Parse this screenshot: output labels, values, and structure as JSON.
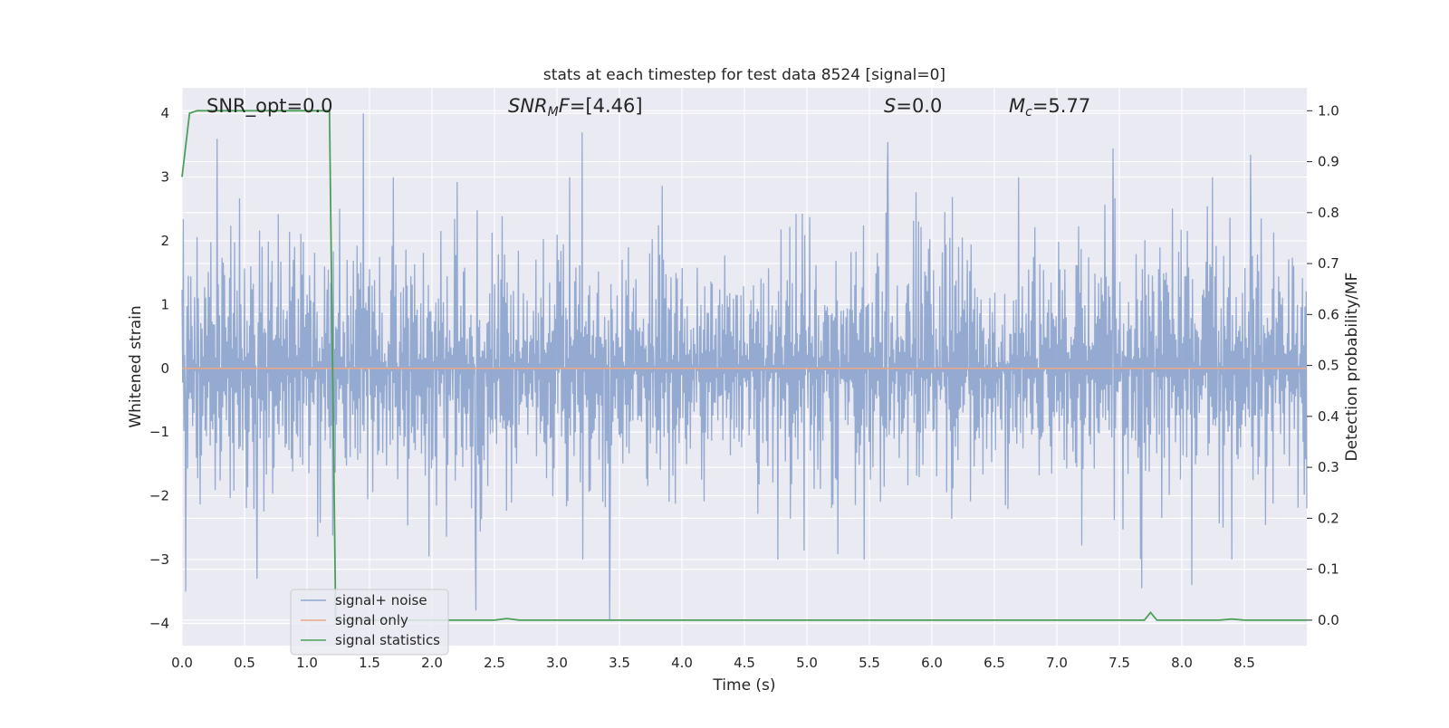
{
  "chart_data": {
    "type": "line",
    "title": "stats at each timestep for test data 8524 [signal=0]",
    "xlabel": "Time (s)",
    "ylabel_left": "Whitened strain",
    "ylabel_right": "Detection probability/MF",
    "xlim": [
      0.0,
      9.0
    ],
    "ylim_left": [
      -4.35,
      4.4
    ],
    "ylim_right": [
      -0.05,
      1.045
    ],
    "x_ticks": [
      "0.0",
      "0.5",
      "1.0",
      "1.5",
      "2.0",
      "2.5",
      "3.0",
      "3.5",
      "4.0",
      "4.5",
      "5.0",
      "5.5",
      "6.0",
      "6.5",
      "7.0",
      "7.5",
      "8.0",
      "8.5"
    ],
    "y_ticks_left": [
      "4",
      "3",
      "2",
      "1",
      "0",
      "−1",
      "−2",
      "−3",
      "−4"
    ],
    "y_ticks_right": [
      "1.0",
      "0.9",
      "0.8",
      "0.7",
      "0.6",
      "0.5",
      "0.4",
      "0.3",
      "0.2",
      "0.1",
      "0.0"
    ],
    "grid": true,
    "legend_position": "bottom-left",
    "annotations": {
      "snr_opt": "SNR_opt=0.0",
      "snr_mf_label": "SNR",
      "snr_mf_sub": "M",
      "snr_mf_tail": "F",
      "snr_mf_value": "=[4.46]",
      "s_label": "S",
      "s_value": "=0.0",
      "mc_label": "M",
      "mc_sub": "c",
      "mc_value": "=5.77"
    },
    "series": [
      {
        "name": "signal+ noise",
        "axis": "left",
        "color": "#8fa6cf",
        "note_values": "dense whitened noise, roughly Gaussian around 0 with peaks up to 4.0 and troughs down to -3.95",
        "peaks": [
          [
            0.28,
            3.6
          ],
          [
            1.45,
            4.0
          ],
          [
            3.2,
            3.7
          ],
          [
            5.65,
            3.55
          ],
          [
            7.45,
            3.45
          ],
          [
            8.55,
            3.35
          ]
        ],
        "troughs": [
          [
            0.03,
            -3.5
          ],
          [
            0.6,
            -3.3
          ],
          [
            2.35,
            -3.8
          ],
          [
            3.42,
            -3.95
          ],
          [
            7.68,
            -3.45
          ],
          [
            8.08,
            -3.4
          ]
        ]
      },
      {
        "name": "signal only",
        "axis": "left",
        "color": "#e8a889",
        "x": [
          0.0,
          9.0
        ],
        "y": [
          0.0,
          0.0
        ]
      },
      {
        "name": "signal statistics",
        "axis": "right",
        "color": "#4c9f5a",
        "x": [
          0.0,
          0.06,
          0.12,
          1.0,
          1.18,
          1.23,
          1.5,
          2.5,
          2.6,
          2.7,
          3.0,
          7.7,
          7.75,
          7.8,
          8.3,
          8.4,
          8.5,
          9.0
        ],
        "y": [
          0.87,
          0.995,
          1.0,
          1.0,
          1.0,
          0.0,
          0.0,
          0.0,
          0.003,
          0.0,
          0.0,
          0.0,
          0.015,
          0.0,
          0.0,
          0.002,
          0.0,
          0.0
        ]
      }
    ]
  },
  "colors": {
    "plot_background": "#eaeaf2",
    "grid": "#ffffff",
    "text": "#262626"
  }
}
